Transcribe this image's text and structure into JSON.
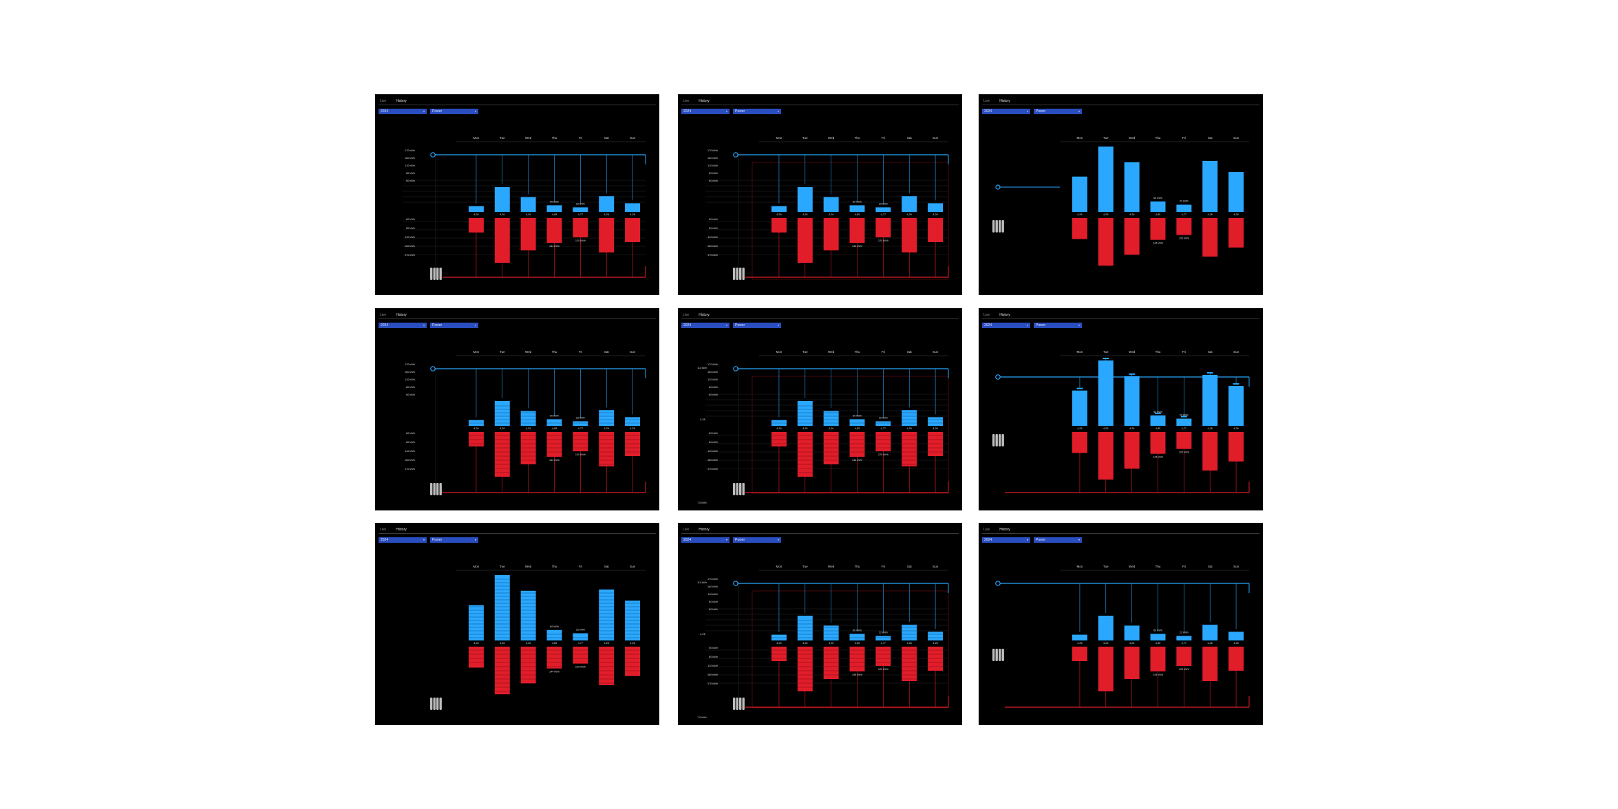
{
  "tabs": {
    "live": "Live",
    "history": "History"
  },
  "dropdowns": {
    "period": "2024",
    "metric": "Power"
  },
  "days": [
    "Mon",
    "Tue",
    "Wed",
    "Thu",
    "Fri",
    "Sat",
    "Sun"
  ],
  "supply_values": [
    4.26,
    4.26,
    4.26,
    4.85,
    4.77,
    4.26,
    4.26
  ],
  "supply_labels": [
    "4,26",
    "4,26",
    "4,26",
    "4,85",
    "4,77",
    "4,26",
    "4,26"
  ],
  "production": [
    1.4,
    6.0,
    3.6,
    1.6,
    1.1,
    3.8,
    2.1
  ],
  "consumption": [
    4.2,
    13.0,
    9.4,
    7.2,
    5.6,
    10.0,
    7.0
  ],
  "axis_labels": {
    "top": [
      "170 kWh",
      "160 kWh",
      "110 kWh",
      "80 kWh",
      "60 kWh"
    ],
    "bottom": [
      "60 kWh",
      "80 kWh",
      "110 kWh",
      "160 kWh",
      "170 kWh"
    ]
  },
  "annotations": {
    "thu_top": "60 kWh",
    "fri_top": "22 kWh",
    "thu_bottom": "144 kWh",
    "fri_bottom": "120 kWh",
    "left_supply": "4,26",
    "left_top": "111 kWh",
    "left_bottom": "7,6 kWh"
  },
  "colors": {
    "blue": "#2aa8ff",
    "red": "#e11d2a",
    "bg": "#000000",
    "dropdown": "#2a4ebf"
  }
}
